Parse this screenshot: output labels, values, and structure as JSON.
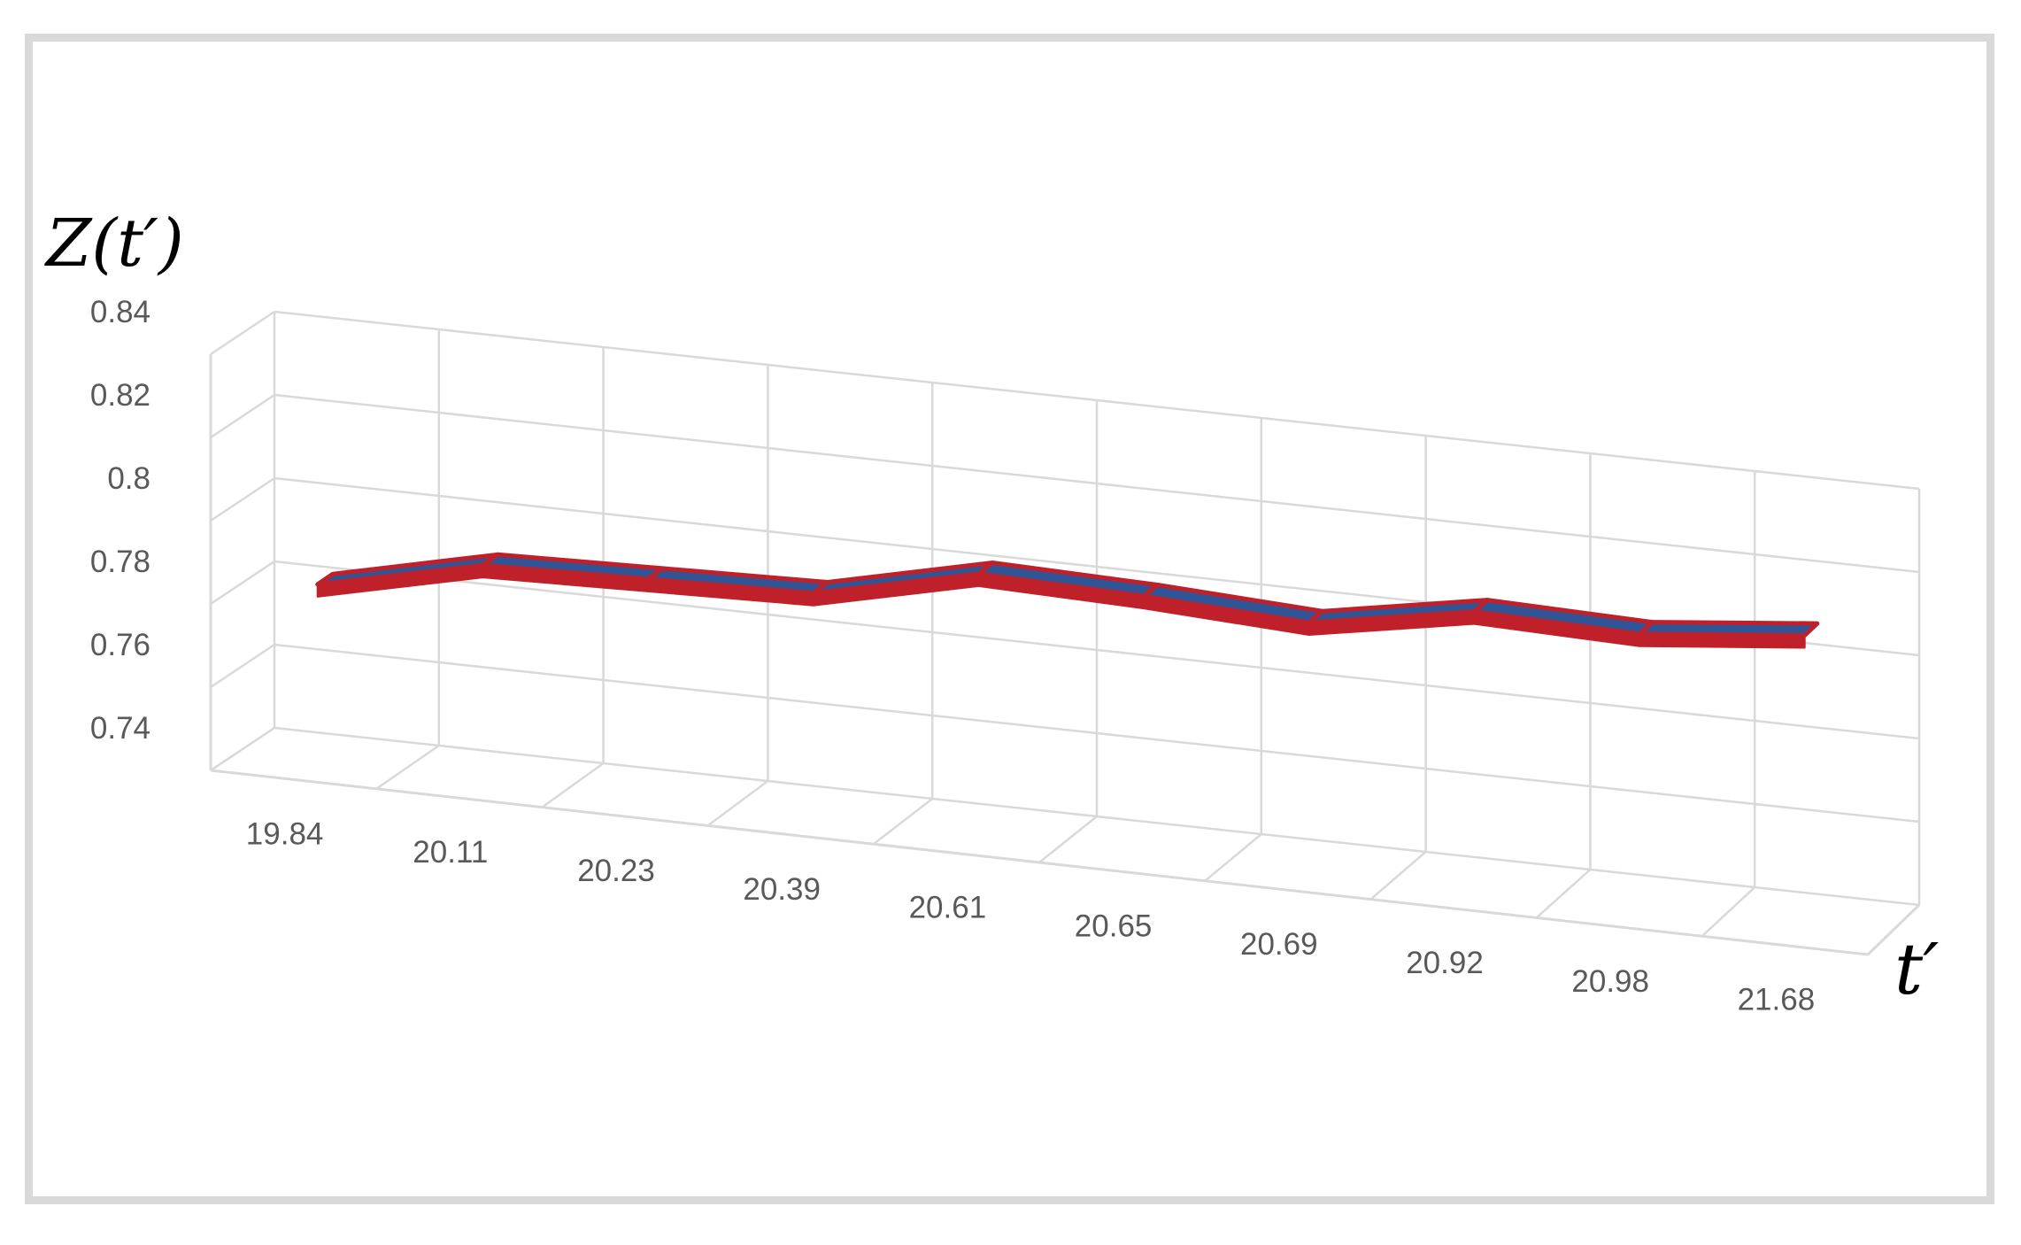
{
  "chart_data": {
    "type": "line",
    "style": "3d-ribbon",
    "title": "",
    "xlabel": "t′",
    "ylabel": "Z(t′)",
    "categories": [
      "19.84",
      "20.11",
      "20.23",
      "20.39",
      "20.61",
      "20.65",
      "20.69",
      "20.92",
      "20.98",
      "21.68"
    ],
    "series": [
      {
        "values": [
          0.783,
          0.792,
          0.793,
          0.794,
          0.803,
          0.802,
          0.8,
          0.807,
          0.806,
          0.81
        ]
      }
    ],
    "y_ticks": [
      "0.74",
      "0.76",
      "0.78",
      "0.8",
      "0.82",
      "0.84"
    ],
    "ylim": [
      0.74,
      0.84
    ],
    "grid": true,
    "legend": "none",
    "colors": {
      "ribbon_top": "#2f5597",
      "ribbon_edge": "#c0202a",
      "grid": "#d9d9d9",
      "frame": "#d9d9d9",
      "tick_text": "#595959"
    }
  }
}
